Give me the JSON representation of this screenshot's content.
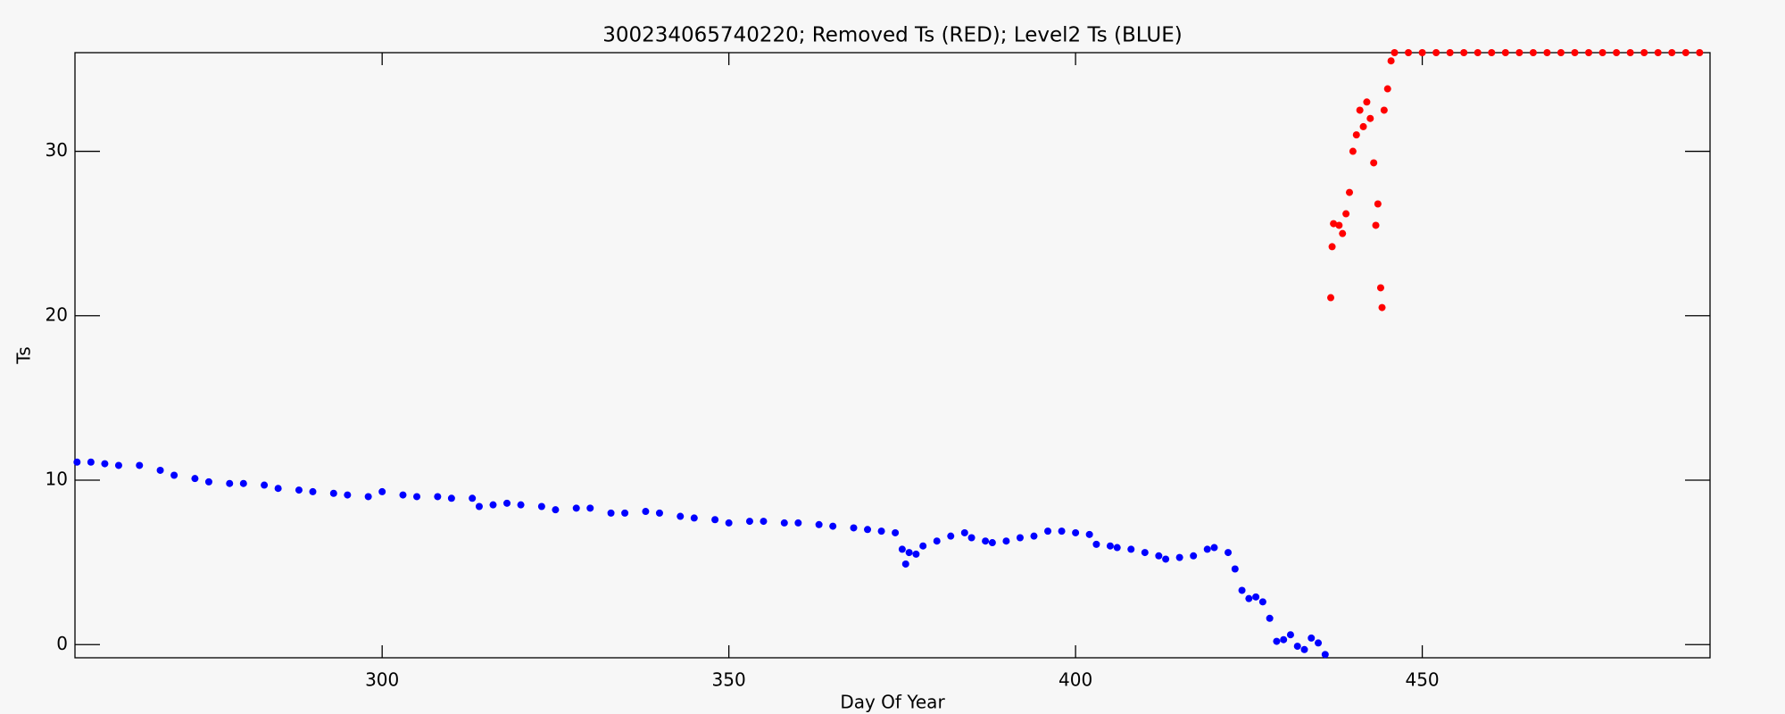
{
  "chart_data": {
    "type": "scatter",
    "title": "300234065740220; Removed Ts (RED); Level2 Ts (BLUE)",
    "x_label": "Day Of Year",
    "y_label": "Ts",
    "xlim": [
      255.7,
      491.5
    ],
    "ylim": [
      -0.8,
      36
    ],
    "xticks": [
      300,
      350,
      400,
      450
    ],
    "yticks": [
      0,
      10,
      20,
      30
    ],
    "series": [
      {
        "color": "#0000ff",
        "x": [
          256,
          258,
          260,
          262,
          265,
          268,
          270,
          273,
          275,
          278,
          280,
          283,
          285,
          288,
          290,
          293,
          295,
          298,
          300,
          303,
          305,
          308,
          310,
          313,
          314,
          316,
          318,
          320,
          323,
          325,
          328,
          330,
          333,
          335,
          338,
          340,
          343,
          345,
          348,
          350,
          353,
          355,
          358,
          360,
          363,
          365,
          368,
          370,
          372,
          374,
          375,
          375.5,
          376,
          377,
          378,
          380,
          382,
          384,
          385,
          387,
          388,
          390,
          392,
          394,
          396,
          398,
          400,
          402,
          403,
          405,
          406,
          408,
          410,
          412,
          413,
          415,
          417,
          419,
          420,
          422,
          423,
          424,
          425,
          426,
          427,
          428,
          429,
          430,
          431,
          432,
          433,
          434,
          435,
          436
        ],
        "values": [
          11.1,
          11.1,
          11.0,
          10.9,
          10.9,
          10.6,
          10.3,
          10.1,
          9.9,
          9.8,
          9.8,
          9.7,
          9.5,
          9.4,
          9.3,
          9.2,
          9.1,
          9.0,
          9.3,
          9.1,
          9.0,
          9.0,
          8.9,
          8.9,
          8.4,
          8.5,
          8.6,
          8.5,
          8.4,
          8.2,
          8.3,
          8.3,
          8.0,
          8.0,
          8.1,
          8.0,
          7.8,
          7.7,
          7.6,
          7.4,
          7.5,
          7.5,
          7.4,
          7.4,
          7.3,
          7.2,
          7.1,
          7.0,
          6.9,
          6.8,
          5.8,
          4.9,
          5.6,
          5.5,
          6.0,
          6.3,
          6.6,
          6.8,
          6.5,
          6.3,
          6.2,
          6.3,
          6.5,
          6.6,
          6.9,
          6.9,
          6.8,
          6.7,
          6.1,
          6.0,
          5.9,
          5.8,
          5.6,
          5.4,
          5.2,
          5.3,
          5.4,
          5.8,
          5.9,
          5.6,
          4.6,
          3.3,
          2.8,
          2.9,
          2.6,
          1.6,
          0.2,
          0.3,
          0.6,
          -0.1,
          -0.3,
          0.4,
          0.1,
          -0.6
        ]
      },
      {
        "color": "#ff0000",
        "x": [
          436.8,
          437,
          437.2,
          438,
          438.5,
          439,
          439.5,
          440,
          440.5,
          441,
          441.5,
          442,
          442.5,
          443,
          443.3,
          443.6,
          444,
          444.2,
          444.5,
          445,
          445.5,
          446,
          448,
          450,
          452,
          454,
          456,
          458,
          460,
          462,
          464,
          466,
          468,
          470,
          472,
          474,
          476,
          478,
          480,
          482,
          484,
          486,
          488,
          490
        ],
        "values": [
          21.1,
          24.2,
          25.6,
          25.5,
          25.0,
          26.2,
          27.5,
          30.0,
          31.0,
          32.5,
          31.5,
          33.0,
          32.0,
          29.3,
          25.5,
          26.8,
          21.7,
          20.5,
          32.5,
          33.8,
          35.5,
          36,
          36,
          36,
          36,
          36,
          36,
          36,
          36,
          36,
          36,
          36,
          36,
          36,
          36,
          36,
          36,
          36,
          36,
          36,
          36,
          36,
          36,
          36
        ]
      }
    ]
  }
}
